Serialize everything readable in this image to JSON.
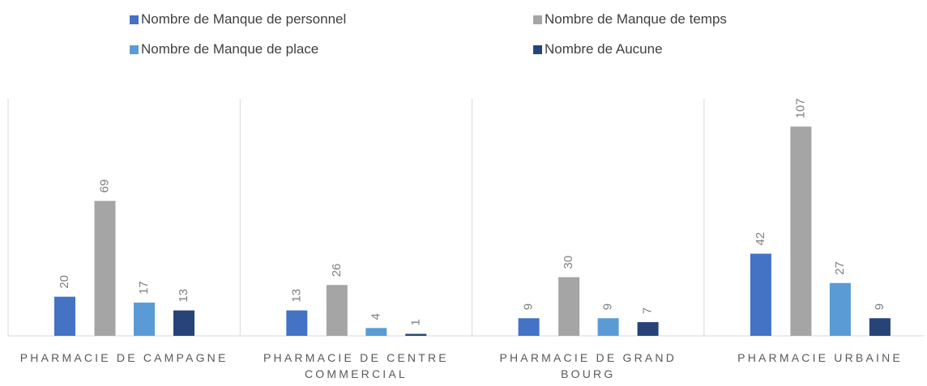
{
  "chart_data": {
    "type": "bar",
    "categories": [
      "PHARMACIE DE CAMPAGNE",
      "PHARMACIE DE CENTRE COMMERCIAL",
      "PHARMACIE DE GRAND BOURG",
      "PHARMACIE URBAINE"
    ],
    "series": [
      {
        "name": "Nombre de Manque de personnel",
        "color": "#4472c4",
        "values": [
          20,
          13,
          9,
          42
        ]
      },
      {
        "name": "Nombre de Manque de temps",
        "color": "#a5a5a5",
        "values": [
          69,
          26,
          30,
          107
        ]
      },
      {
        "name": "Nombre de Manque de place",
        "color": "#5b9bd5",
        "values": [
          17,
          4,
          9,
          27
        ]
      },
      {
        "name": "Nombre de Aucune",
        "color": "#264478",
        "values": [
          13,
          1,
          7,
          9
        ]
      }
    ],
    "ylim": [
      0,
      120
    ]
  }
}
